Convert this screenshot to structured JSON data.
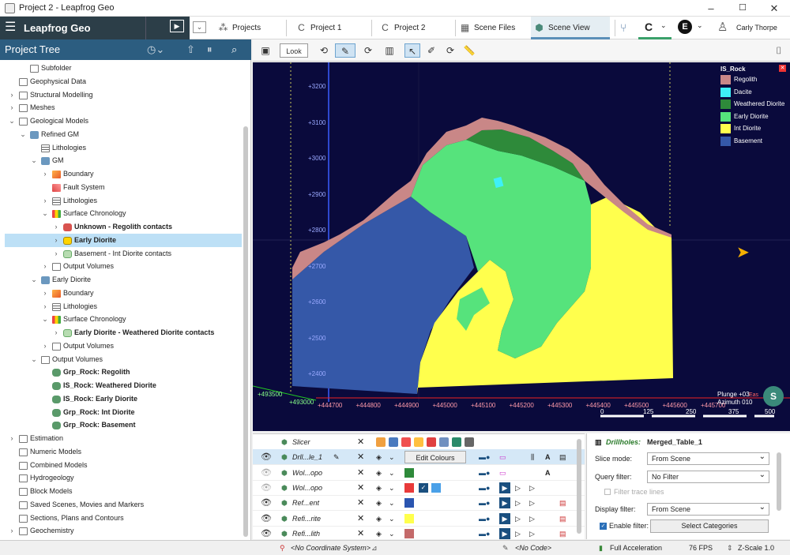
{
  "window": {
    "title": "Project 2 - Leapfrog Geo",
    "min": "–",
    "max": "☐",
    "close": "✕"
  },
  "topbar": {
    "menu_icon": "☰",
    "brand": "Leapfrog Geo",
    "play": "▶",
    "dropdown": "⌄",
    "tabs": [
      {
        "label": "Projects",
        "icon": "⁂"
      },
      {
        "label": "Project 1",
        "icon": "C"
      },
      {
        "label": "Project 2",
        "icon": "C"
      },
      {
        "label": "Scene Files",
        "icon": "▦"
      },
      {
        "label": "Scene View",
        "icon": "⬢"
      }
    ],
    "branch_icon": "⑂",
    "c_icon": "C",
    "e_icon": "E",
    "user": "Carly Thorpe",
    "user_icon": "♙"
  },
  "tree": {
    "title": "Project Tree",
    "rows": [
      {
        "label": "Subfolder",
        "indent": 2,
        "icon": "folder",
        "arrow": ""
      },
      {
        "label": "Geophysical Data",
        "indent": 1,
        "icon": "folder",
        "arrow": ""
      },
      {
        "label": "Structural Modelling",
        "indent": 1,
        "icon": "folder",
        "arrow": "›"
      },
      {
        "label": "Meshes",
        "indent": 1,
        "icon": "folder",
        "arrow": "›"
      },
      {
        "label": "Geological Models",
        "indent": 1,
        "icon": "folder",
        "arrow": "⌄"
      },
      {
        "label": "Refined GM",
        "indent": 2,
        "icon": "geo",
        "arrow": "⌄"
      },
      {
        "label": "Lithologies",
        "indent": 3,
        "icon": "list",
        "arrow": ""
      },
      {
        "label": "GM",
        "indent": 3,
        "icon": "geo",
        "arrow": "⌄"
      },
      {
        "label": "Boundary",
        "indent": 4,
        "icon": "box",
        "arrow": "›"
      },
      {
        "label": "Fault System",
        "indent": 4,
        "icon": "fault",
        "arrow": ""
      },
      {
        "label": "Lithologies",
        "indent": 4,
        "icon": "list",
        "arrow": "›"
      },
      {
        "label": "Surface Chronology",
        "indent": 4,
        "icon": "chrono",
        "arrow": "⌄"
      },
      {
        "label": "Unknown - Regolith contacts",
        "indent": 5,
        "icon": "redblob",
        "arrow": "›",
        "bold": true
      },
      {
        "label": "Early Diorite",
        "indent": 5,
        "icon": "yelblob",
        "arrow": "›",
        "bold": true,
        "sel": true
      },
      {
        "label": "Basement - Int Diorite contacts",
        "indent": 5,
        "icon": "grnblob",
        "arrow": "›"
      },
      {
        "label": "Output Volumes",
        "indent": 4,
        "icon": "folder",
        "arrow": "›"
      },
      {
        "label": "Early Diorite",
        "indent": 3,
        "icon": "geo",
        "arrow": "⌄"
      },
      {
        "label": "Boundary",
        "indent": 4,
        "icon": "box",
        "arrow": "›"
      },
      {
        "label": "Lithologies",
        "indent": 4,
        "icon": "list",
        "arrow": "›"
      },
      {
        "label": "Surface Chronology",
        "indent": 4,
        "icon": "chrono",
        "arrow": "⌄"
      },
      {
        "label": "Early Diorite - Weathered Diorite contacts",
        "indent": 5,
        "icon": "grnblob",
        "arrow": "›",
        "bold": true
      },
      {
        "label": "Output Volumes",
        "indent": 4,
        "icon": "folder",
        "arrow": "›"
      },
      {
        "label": "Output Volumes",
        "indent": 3,
        "icon": "folder",
        "arrow": "⌄"
      },
      {
        "label": "Grp_Rock: Regolith",
        "indent": 4,
        "icon": "vol",
        "arrow": "",
        "bold": true
      },
      {
        "label": "IS_Rock: Weathered Diorite",
        "indent": 4,
        "icon": "vol",
        "arrow": "",
        "bold": true
      },
      {
        "label": "IS_Rock: Early Diorite",
        "indent": 4,
        "icon": "vol",
        "arrow": "",
        "bold": true
      },
      {
        "label": "Grp_Rock: Int Diorite",
        "indent": 4,
        "icon": "vol",
        "arrow": "",
        "bold": true
      },
      {
        "label": "Grp_Rock: Basement",
        "indent": 4,
        "icon": "vol",
        "arrow": "",
        "bold": true
      },
      {
        "label": "Estimation",
        "indent": 1,
        "icon": "folder",
        "arrow": "›"
      },
      {
        "label": "Numeric Models",
        "indent": 1,
        "icon": "folder",
        "arrow": ""
      },
      {
        "label": "Combined Models",
        "indent": 1,
        "icon": "folder",
        "arrow": ""
      },
      {
        "label": "Hydrogeology",
        "indent": 1,
        "icon": "folder",
        "arrow": ""
      },
      {
        "label": "Block Models",
        "indent": 1,
        "icon": "folder",
        "arrow": ""
      },
      {
        "label": "Saved Scenes, Movies and Markers",
        "indent": 1,
        "icon": "folder",
        "arrow": ""
      },
      {
        "label": "Sections, Plans and Contours",
        "indent": 1,
        "icon": "folder",
        "arrow": ""
      },
      {
        "label": "Geochemistry",
        "indent": 1,
        "icon": "folder",
        "arrow": "›"
      }
    ]
  },
  "scene_toolbar": {
    "look": "Look"
  },
  "legend": {
    "title": "IS_Rock",
    "items": [
      {
        "label": "Regolith",
        "color": "#c98787"
      },
      {
        "label": "Dacite",
        "color": "#3ef0f7"
      },
      {
        "label": "Weathered Diorite",
        "color": "#2e8a3a"
      },
      {
        "label": "Early Diorite",
        "color": "#56e37c"
      },
      {
        "label": "Int Diorite",
        "color": "#ffff4d"
      },
      {
        "label": "Basement",
        "color": "#3558a8"
      }
    ]
  },
  "axes": {
    "y_ticks": [
      "+3200",
      "+3100",
      "+3000",
      "+2900",
      "+2800",
      "+2700",
      "+2600",
      "+2500",
      "+2400"
    ],
    "x_ticks": [
      "+444700",
      "+444800",
      "+444900",
      "+445000",
      "+445100",
      "+445200",
      "+445300",
      "+445400",
      "+445500",
      "+445600",
      "+445700"
    ],
    "depth_ticks": [
      "+493500",
      "+493000"
    ],
    "plunge": "Plunge +03",
    "azimuth": "Azimuth 010",
    "east": "Eas",
    "scale": [
      "0",
      "125",
      "250",
      "375",
      "500"
    ]
  },
  "shapes": {
    "rows": [
      {
        "name": "Slicer"
      },
      {
        "name": "Drll...le_1",
        "sel": true,
        "action": "Edit Colours"
      },
      {
        "name": "Wol...opo",
        "color": "#2e8a3a"
      },
      {
        "name": "Wol...opo",
        "color": "#e83a3a",
        "color2": "#4aa0e8"
      },
      {
        "name": "Ref...ent",
        "color": "#2a55b0"
      },
      {
        "name": "Refi...rite",
        "color": "#ffff4d"
      },
      {
        "name": "Refi...lith",
        "color": "#c46a6a"
      }
    ]
  },
  "props": {
    "title_prefix": "Drillholes:",
    "title": "Merged_Table_1",
    "slice_mode_label": "Slice mode:",
    "slice_mode": "From Scene",
    "query_filter_label": "Query filter:",
    "query_filter": "No Filter",
    "filter_trace": "Filter trace lines",
    "display_filter_label": "Display filter:",
    "display_filter": "From Scene",
    "enable_filter": "Enable filter:",
    "select_categories": "Select Categories"
  },
  "status": {
    "coord": "<No Coordinate System>",
    "code": "<No Code>",
    "accel": "Full Acceleration",
    "fps": "76 FPS",
    "zscale": "Z-Scale 1.0"
  }
}
